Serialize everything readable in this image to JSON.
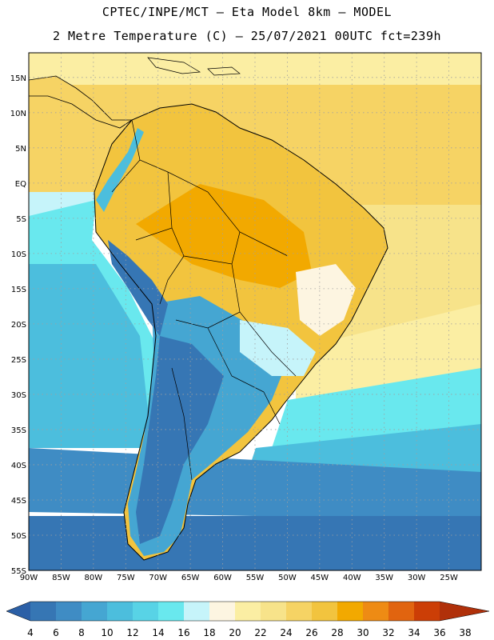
{
  "header": {
    "line1": "CPTEC/INPE/MCT –  Eta Model 8km – MODEL",
    "line2": "2 Metre Temperature (C) – 25/07/2021 00UTC fct=239h"
  },
  "map": {
    "lat_labels": [
      "15N",
      "10N",
      "5N",
      "EQ",
      "5S",
      "10S",
      "15S",
      "20S",
      "25S",
      "30S",
      "35S",
      "40S",
      "45S",
      "50S",
      "55S"
    ],
    "lon_labels": [
      "90W",
      "85W",
      "80W",
      "75W",
      "70W",
      "65W",
      "60W",
      "55W",
      "50W",
      "45W",
      "40W",
      "35W",
      "30W",
      "25W"
    ],
    "lat_range": [
      18.5,
      -55
    ],
    "lon_range": [
      -90,
      -20
    ],
    "gridlines": "dotted"
  },
  "colorbar": {
    "labels": [
      "4",
      "6",
      "8",
      "10",
      "12",
      "14",
      "16",
      "18",
      "20",
      "22",
      "24",
      "26",
      "28",
      "30",
      "32",
      "34",
      "36",
      "38"
    ],
    "colors": [
      "#2b5fa6",
      "#3676b4",
      "#3f8cc4",
      "#45a6d2",
      "#4cbedd",
      "#58d3e6",
      "#69e8ee",
      "#c6f4fa",
      "#fdf5e1",
      "#fbeea3",
      "#f7e38a",
      "#f6d364",
      "#f2c43e",
      "#f2a900",
      "#ee8b14",
      "#e1640f",
      "#cc3e06",
      "#b0300a"
    ]
  }
}
